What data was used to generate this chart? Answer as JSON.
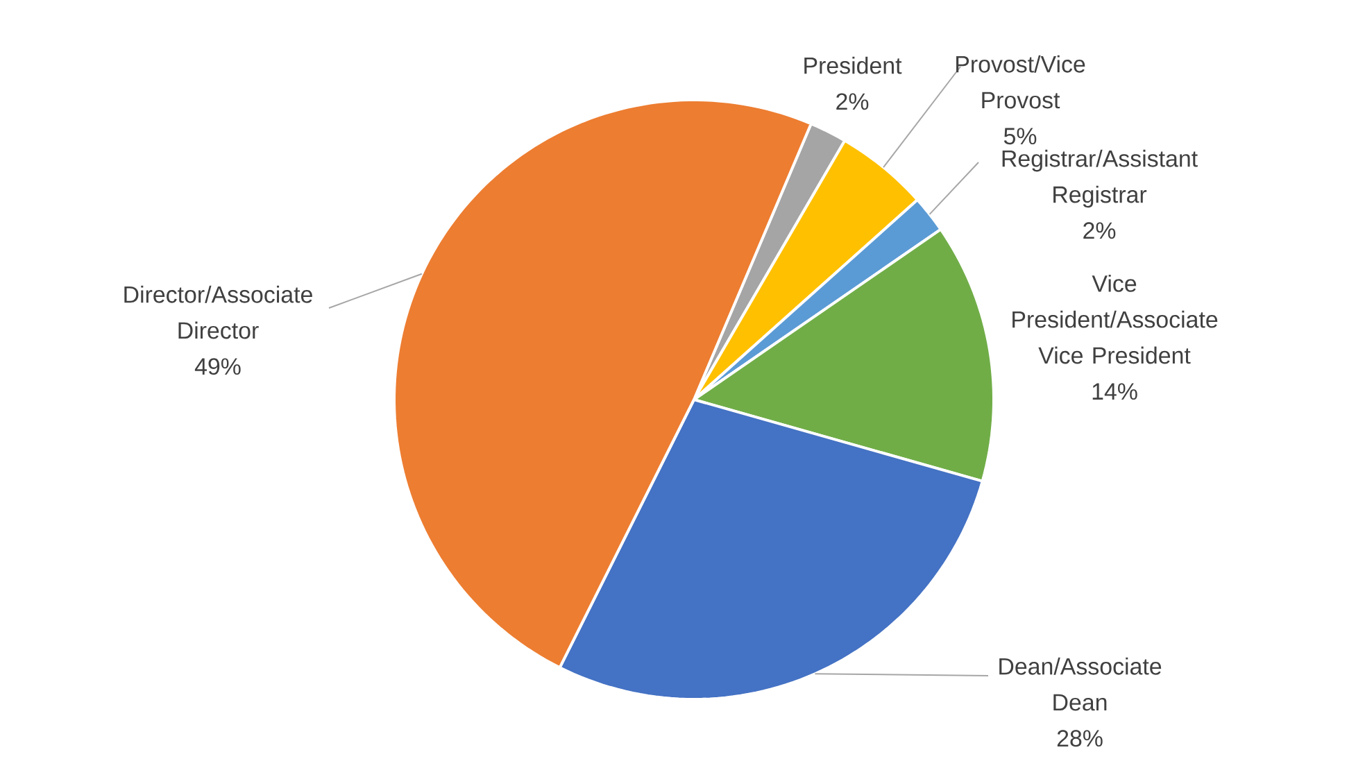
{
  "chart_data": {
    "type": "pie",
    "categories": [
      "President",
      "Provost/Vice Provost",
      "Registrar/Assistant Registrar",
      "Vice President/Associate Vice President",
      "Dean/Associate Dean",
      "Director/Associate Director"
    ],
    "values": [
      2,
      5,
      2,
      14,
      28,
      49
    ],
    "colors": [
      "#a5a5a5",
      "#ffc000",
      "#5b9bd5",
      "#70ad47",
      "#4472c4",
      "#ed7d31"
    ],
    "value_labels": [
      "2%",
      "5%",
      "2%",
      "14%",
      "28%",
      "49%"
    ]
  }
}
